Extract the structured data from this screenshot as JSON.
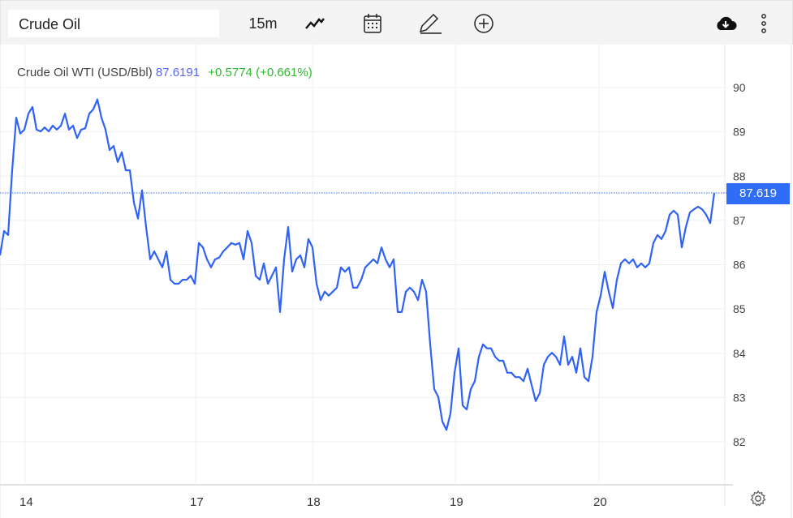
{
  "toolbar": {
    "symbol": "Crude Oil",
    "interval": "15m",
    "icons": [
      "line-chart-icon",
      "calendar-icon",
      "pencil-icon",
      "plus-circle-icon",
      "cloud-download-icon",
      "more-vertical-icon",
      "gear-icon"
    ]
  },
  "legend": {
    "name": "Crude Oil WTI (USD/Bbl)",
    "price": "87.6191",
    "change": "+0.5774 (+0.661%)"
  },
  "colors": {
    "line": "#2f62f5",
    "badge": "#2f6df6",
    "change": "#2eb82e",
    "price": "#5867f8"
  },
  "chart_data": {
    "type": "line",
    "title": "",
    "xlabel": "",
    "ylabel": "",
    "ylim": [
      81.3,
      90.9
    ],
    "y_ticks": [
      82,
      83,
      84,
      85,
      86,
      87,
      88,
      89,
      90
    ],
    "x_ticks": [
      {
        "label": "14",
        "at": 6.2
      },
      {
        "label": "17",
        "at": 48.2
      },
      {
        "label": "18",
        "at": 77
      },
      {
        "label": "19",
        "at": 112.2
      },
      {
        "label": "20",
        "at": 147.6
      }
    ],
    "grid": true,
    "last_price_label": "87.619",
    "last_price": 87.619,
    "series": [
      {
        "values": [
          86.21,
          86.76,
          86.67,
          88.13,
          89.32,
          88.96,
          89.05,
          89.41,
          89.56,
          89.05,
          89.01,
          89.1,
          89.01,
          89.14,
          89.05,
          89.14,
          89.41,
          89.05,
          89.14,
          88.86,
          89.05,
          89.08,
          89.41,
          89.51,
          89.73,
          89.32,
          89.05,
          88.59,
          88.68,
          88.32,
          88.54,
          88.13,
          88.13,
          87.4,
          87.04,
          87.68,
          86.85,
          86.12,
          86.3,
          86.12,
          85.94,
          86.3,
          85.66,
          85.57,
          85.57,
          85.66,
          85.66,
          85.75,
          85.57,
          86.49,
          86.39,
          86.12,
          85.94,
          86.12,
          86.16,
          86.3,
          86.39,
          86.49,
          86.45,
          86.49,
          86.12,
          86.76,
          86.49,
          85.75,
          85.66,
          86.03,
          85.57,
          85.75,
          85.94,
          84.93,
          86.12,
          86.85,
          85.84,
          86.12,
          86.21,
          85.94,
          86.58,
          86.39,
          85.57,
          85.2,
          85.39,
          85.3,
          85.39,
          85.48,
          85.94,
          85.84,
          85.94,
          85.48,
          85.48,
          85.66,
          85.94,
          86.03,
          86.12,
          86.03,
          86.39,
          86.12,
          85.94,
          86.12,
          84.93,
          84.93,
          85.39,
          85.48,
          85.39,
          85.2,
          85.66,
          85.39,
          84.2,
          83.19,
          83.01,
          82.46,
          82.27,
          82.64,
          83.56,
          84.11,
          82.82,
          82.73,
          83.19,
          83.37,
          83.92,
          84.2,
          84.11,
          84.11,
          83.92,
          83.83,
          83.83,
          83.56,
          83.56,
          83.46,
          83.46,
          83.37,
          83.65,
          83.28,
          82.92,
          83.1,
          83.74,
          83.92,
          84.01,
          83.92,
          83.74,
          84.38,
          83.74,
          83.92,
          83.56,
          84.11,
          83.46,
          83.37,
          83.92,
          84.93,
          85.3,
          85.84,
          85.39,
          85.02,
          85.66,
          86.03,
          86.12,
          86.03,
          86.12,
          85.94,
          86.03,
          85.94,
          86.03,
          86.49,
          86.67,
          86.58,
          86.76,
          87.13,
          87.22,
          87.13,
          86.39,
          86.85,
          87.18,
          87.25,
          87.31,
          87.25,
          87.13,
          86.94,
          87.62
        ]
      }
    ]
  }
}
